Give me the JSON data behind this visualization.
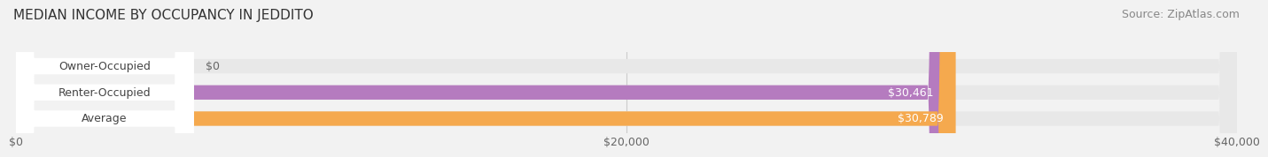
{
  "title": "MEDIAN INCOME BY OCCUPANCY IN JEDDITO",
  "source": "Source: ZipAtlas.com",
  "categories": [
    "Owner-Occupied",
    "Renter-Occupied",
    "Average"
  ],
  "values": [
    0,
    30461,
    30789
  ],
  "bar_colors": [
    "#7fd8d8",
    "#b57bbf",
    "#f5a94e"
  ],
  "value_labels": [
    "$0",
    "$30,461",
    "$30,789"
  ],
  "xlim": [
    0,
    40000
  ],
  "xticks": [
    0,
    20000,
    40000
  ],
  "xtick_labels": [
    "$0",
    "$20,000",
    "$40,000"
  ],
  "background_color": "#f2f2f2",
  "bar_background_color": "#e8e8e8",
  "title_fontsize": 11,
  "source_fontsize": 9,
  "label_fontsize": 9,
  "value_fontsize": 9
}
